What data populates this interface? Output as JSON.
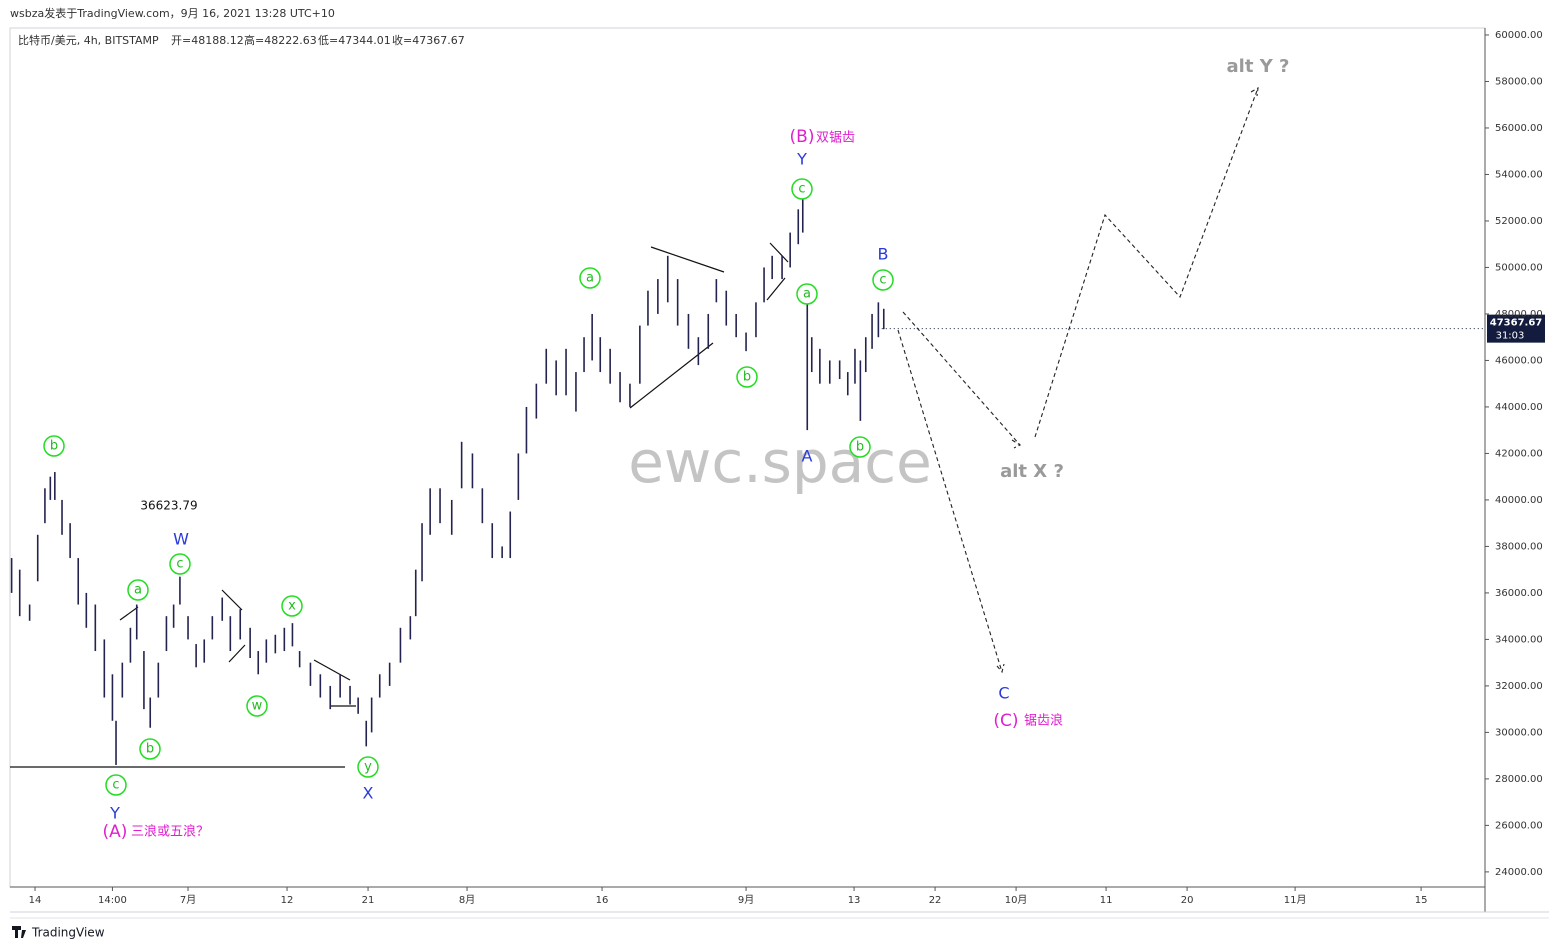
{
  "header": {
    "posted": "wsbza发表于TradingView.com，9月 16, 2021 13:28 UTC+10",
    "symbol": "比特币/美元, 4h, BITSTAMP",
    "open": "开=48188.12",
    "high": "高=48222.63",
    "low": "低=47344.01",
    "close": "收=47367.67"
  },
  "footer": {
    "brand": "TradingView"
  },
  "chart_data": {
    "type": "ohlc",
    "color": "#23234f",
    "grid": false,
    "x": [
      10.4,
      11.3,
      12.4,
      13.3,
      14.1,
      14.7,
      15.2,
      16.0,
      16.9,
      17.8,
      18.7,
      19.7,
      20.7,
      21.6,
      22.0,
      22.7,
      23.6,
      24.3,
      25.1,
      25.8,
      26.7,
      27.6,
      28.4,
      29.1,
      30.0,
      30.9,
      31.8,
      32.7,
      33.8,
      34.7,
      35.8,
      36.9,
      37.8,
      38.7,
      39.7,
      40.7,
      41.6,
      42.4,
      43.6,
      44.7,
      45.8,
      46.9,
      48.0,
      48.9,
      49.8,
      50.4,
      51.3,
      52.4,
      53.6,
      54.7,
      55.3,
      56.0,
      56.9,
      58.0,
      59.3,
      60.4,
      61.6,
      62.7,
      63.8,
      64.9,
      65.8,
      66.7,
      67.6,
      68.7,
      69.8,
      70.9,
      72.0,
      73.1,
      74.0,
      74.9,
      75.8,
      76.9,
      78.0,
      79.1,
      80.2,
      81.1,
      82.2,
      83.3,
      84.4,
      85.6,
      86.7,
      87.8,
      88.7,
      89.8,
      90.9,
      92.0,
      93.1,
      94.0,
      94.9,
      96.0,
      96.9,
      97.8,
      98.3,
      98.8,
      99.3,
      100.2,
      101.3,
      102.4,
      103.3,
      104.1,
      104.7,
      105.3,
      106.0,
      106.7,
      107.3
    ],
    "high": [
      37500,
      37000,
      35500,
      38500,
      40500,
      41000,
      41200,
      40000,
      39000,
      37500,
      36000,
      35500,
      34000,
      32500,
      30500,
      33000,
      34500,
      35500,
      33500,
      31500,
      33000,
      35000,
      35500,
      36700,
      35000,
      33800,
      34000,
      35000,
      35800,
      35000,
      35300,
      34500,
      33500,
      34000,
      34200,
      34500,
      34700,
      33500,
      33000,
      32500,
      32000,
      32500,
      32000,
      31500,
      30500,
      31500,
      32500,
      33000,
      34500,
      35000,
      37000,
      39000,
      40500,
      40500,
      40000,
      42500,
      42000,
      40500,
      39000,
      38000,
      39500,
      42000,
      44000,
      45000,
      46500,
      46000,
      46500,
      45500,
      47000,
      48000,
      47000,
      46500,
      45500,
      45000,
      47500,
      49000,
      49500,
      50500,
      49500,
      48000,
      47000,
      48000,
      49500,
      49000,
      48000,
      47200,
      48500,
      50000,
      50500,
      50500,
      51500,
      52500,
      53000,
      48500,
      47000,
      46500,
      46000,
      46000,
      45500,
      46500,
      46000,
      47000,
      48000,
      48500,
      48222.63
    ],
    "low": [
      36000,
      35000,
      34800,
      36500,
      39000,
      40000,
      40000,
      38500,
      37500,
      35500,
      34500,
      33500,
      31500,
      30500,
      28600,
      31500,
      33000,
      34000,
      31000,
      30200,
      31500,
      33500,
      34500,
      35500,
      34000,
      32800,
      33000,
      34000,
      34800,
      33500,
      34000,
      33200,
      32500,
      33000,
      33400,
      33500,
      33700,
      32800,
      32000,
      31500,
      31000,
      31500,
      31200,
      30800,
      29400,
      30000,
      31500,
      32000,
      33000,
      34000,
      35000,
      36500,
      38500,
      39000,
      38500,
      40500,
      40500,
      39000,
      37500,
      37500,
      37500,
      40000,
      42000,
      43500,
      45000,
      44500,
      44500,
      43800,
      45500,
      46000,
      45500,
      45000,
      44200,
      44000,
      45000,
      47500,
      48000,
      48500,
      47500,
      46500,
      45800,
      46500,
      48500,
      47500,
      47000,
      46400,
      47000,
      48500,
      49500,
      49500,
      50000,
      51000,
      51500,
      43000,
      45500,
      45000,
      45000,
      45200,
      44500,
      45000,
      43400,
      45500,
      46500,
      47000,
      47344.01
    ],
    "last_price": 47367.67,
    "countdown": "31:03",
    "xlim": [
      10.22,
      174.1
    ],
    "xticks": [
      {
        "value": 13,
        "label": "14"
      },
      {
        "value": 21.6,
        "label": "14:00"
      },
      {
        "value": 30,
        "label": "7月"
      },
      {
        "value": 41,
        "label": "12"
      },
      {
        "value": 50,
        "label": "21"
      },
      {
        "value": 61,
        "label": "8月"
      },
      {
        "value": 76,
        "label": "16"
      },
      {
        "value": 92,
        "label": "9月"
      },
      {
        "value": 104,
        "label": "13"
      },
      {
        "value": 113,
        "label": "22"
      },
      {
        "value": 122,
        "label": "10月"
      },
      {
        "value": 132,
        "label": "11"
      },
      {
        "value": 141,
        "label": "20"
      },
      {
        "value": 153,
        "label": "11月"
      },
      {
        "value": 167,
        "label": "15"
      }
    ],
    "ylim": [
      23350,
      60300
    ],
    "yticks": [
      {
        "value": 24000,
        "label": "24000.00"
      },
      {
        "value": 26000,
        "label": "26000.00"
      },
      {
        "value": 28000,
        "label": "28000.00"
      },
      {
        "value": 30000,
        "label": "30000.00"
      },
      {
        "value": 32000,
        "label": "32000.00"
      },
      {
        "value": 34000,
        "label": "34000.00"
      },
      {
        "value": 36000,
        "label": "36000.00"
      },
      {
        "value": 38000,
        "label": "38000.00"
      },
      {
        "value": 40000,
        "label": "40000.00"
      },
      {
        "value": 42000,
        "label": "42000.00"
      },
      {
        "value": 44000,
        "label": "44000.00"
      },
      {
        "value": 46000,
        "label": "46000.00"
      },
      {
        "value": 48000,
        "label": "48000.00"
      },
      {
        "value": 50000,
        "label": "50000.00"
      },
      {
        "value": 52000,
        "label": "52000.00"
      },
      {
        "value": 54000,
        "label": "54000.00"
      },
      {
        "value": 56000,
        "label": "56000.00"
      },
      {
        "value": 58000,
        "label": "58000.00"
      },
      {
        "value": 60000,
        "label": "60000.00"
      }
    ],
    "annotations": {
      "circled": [
        "b",
        "a",
        "c",
        "b",
        "c",
        "x",
        "w",
        "y",
        "a",
        "b",
        "c",
        "a",
        "b",
        "c"
      ],
      "waves": [
        "W",
        "Y",
        "X",
        "Y",
        "A",
        "B",
        "C"
      ],
      "degree": [
        "(A)",
        "三浪或五浪？",
        "(B)",
        "双锯齿",
        "(C)",
        "锯齿浪"
      ],
      "alternates": [
        "alt Y ?",
        "alt X ?"
      ],
      "price_note": "36623.79",
      "watermark": "ewc.space"
    }
  }
}
